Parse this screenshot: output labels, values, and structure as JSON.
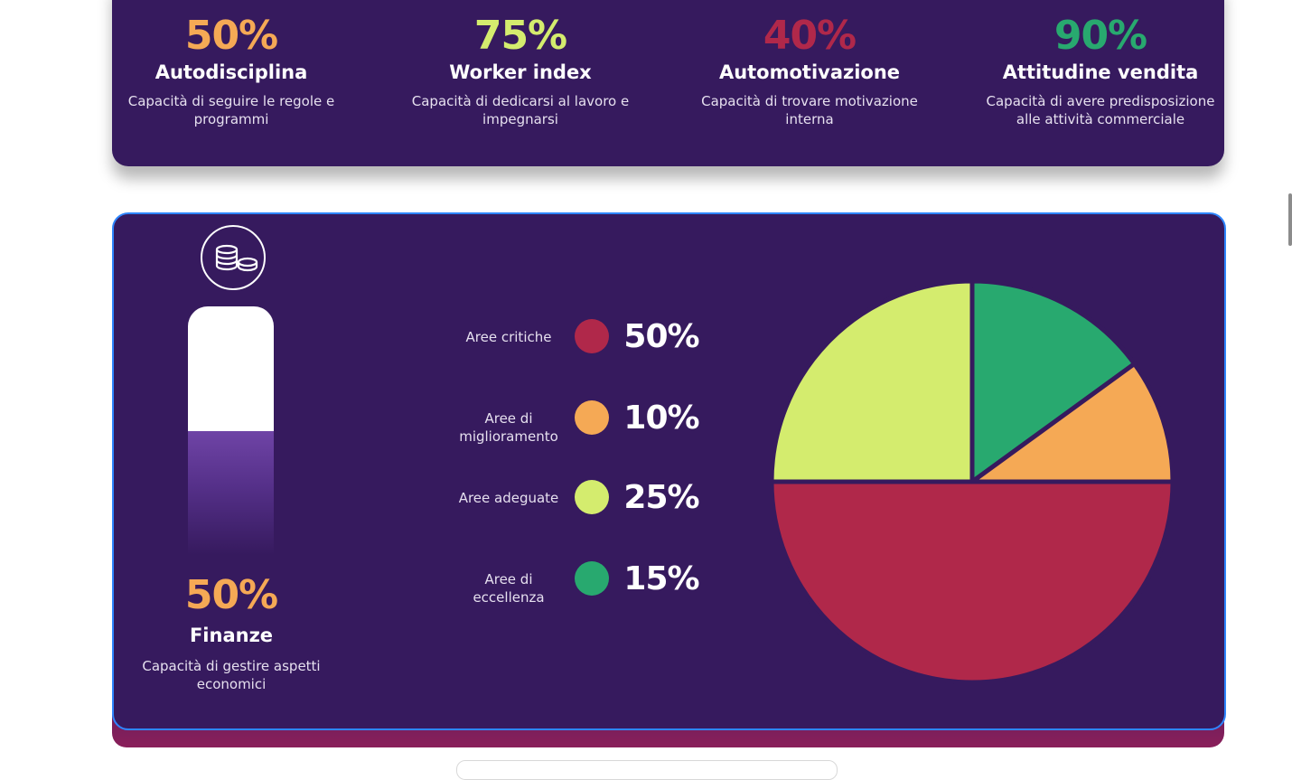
{
  "metrics": [
    {
      "pct": "50%",
      "name": "Autodisciplina",
      "desc": "Capacità di seguire le regole e programmi",
      "color": "#f5a955"
    },
    {
      "pct": "75%",
      "name": "Worker index",
      "desc": "Capacità di dedicarsi al lavoro e impegnarsi",
      "color": "#d4ec6e"
    },
    {
      "pct": "40%",
      "name": "Automotivazione",
      "desc": "Capacità di trovare motivazione interna",
      "color": "#b0284a"
    },
    {
      "pct": "90%",
      "name": "Attitudine vendita",
      "desc": "Capacità di avere predisposizione alle attività commerciale",
      "color": "#28a96f"
    }
  ],
  "finance": {
    "icon": "coins-icon",
    "pct": "50%",
    "level": 0.5,
    "name": "Finanze",
    "desc": "Capacità di gestire aspetti economici"
  },
  "chart_data": {
    "type": "pie",
    "categories": [
      "Aree critiche",
      "Aree di miglioramento",
      "Aree adeguate",
      "Aree di eccellenza"
    ],
    "values": [
      50,
      10,
      25,
      15
    ],
    "value_labels": [
      "50%",
      "10%",
      "25%",
      "15%"
    ],
    "colors": [
      "#b0284a",
      "#f5a955",
      "#d4ec6e",
      "#28a96f"
    ],
    "legend": "left"
  }
}
